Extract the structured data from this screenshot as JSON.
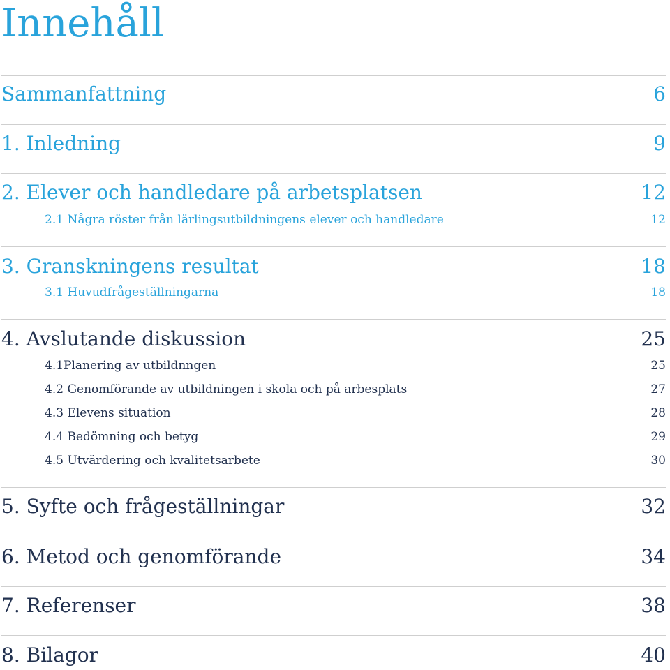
{
  "page": {
    "title": "Innehåll"
  },
  "colors": {
    "accent": "#29a3db",
    "dark": "#22314f",
    "divider": "#cfcfcf"
  },
  "toc": {
    "entries": [
      {
        "label": "Sammanfattning",
        "page": "6"
      },
      {
        "label": "1. Inledning",
        "page": "9"
      },
      {
        "label": "2. Elever och handledare på arbetsplatsen",
        "page": "12",
        "subs": [
          {
            "label": "2.1 Några röster från lärlingsutbildningens elever och handledare",
            "page": "12"
          }
        ]
      },
      {
        "label": "3. Granskningens resultat",
        "page": "18",
        "subs": [
          {
            "label": "3.1 Huvudfrågeställningarna",
            "page": "18"
          }
        ]
      },
      {
        "label": "4. Avslutande diskussion",
        "page": "25",
        "subs": [
          {
            "label": "4.1Planering av utbildnngen",
            "page": "25"
          },
          {
            "label": "4.2 Genomförande av utbildningen i skola och på arbesplats",
            "page": "27"
          },
          {
            "label": "4.3 Elevens situation",
            "page": "28"
          },
          {
            "label": "4.4 Bedömning och betyg",
            "page": "29"
          },
          {
            "label": "4.5 Utvärdering och kvalitetsarbete",
            "page": "30"
          }
        ]
      },
      {
        "label": "5. Syfte och frågeställningar",
        "page": "32"
      },
      {
        "label": "6. Metod och genomförande",
        "page": "34"
      },
      {
        "label": "7. Referenser",
        "page": "38"
      },
      {
        "label": "8. Bilagor",
        "page": "40"
      }
    ]
  }
}
